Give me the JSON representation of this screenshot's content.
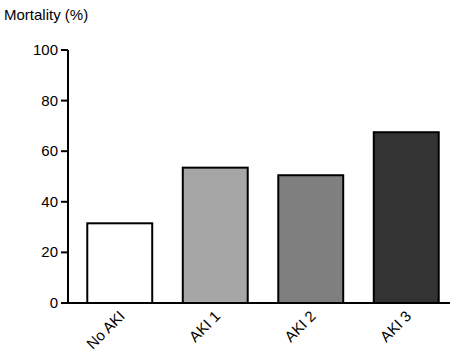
{
  "chart_data": {
    "type": "bar",
    "y_label": "Mortality (%)",
    "categories": [
      "No AKI",
      "AKI 1",
      "AKI 2",
      "AKI 3"
    ],
    "values": [
      31.5,
      53.5,
      50.5,
      67.5
    ],
    "colors": [
      "#ffffff",
      "#a6a6a6",
      "#7f7f7f",
      "#333333"
    ],
    "ylim": [
      0,
      100
    ],
    "yticks": [
      0,
      20,
      40,
      60,
      80,
      100
    ]
  }
}
